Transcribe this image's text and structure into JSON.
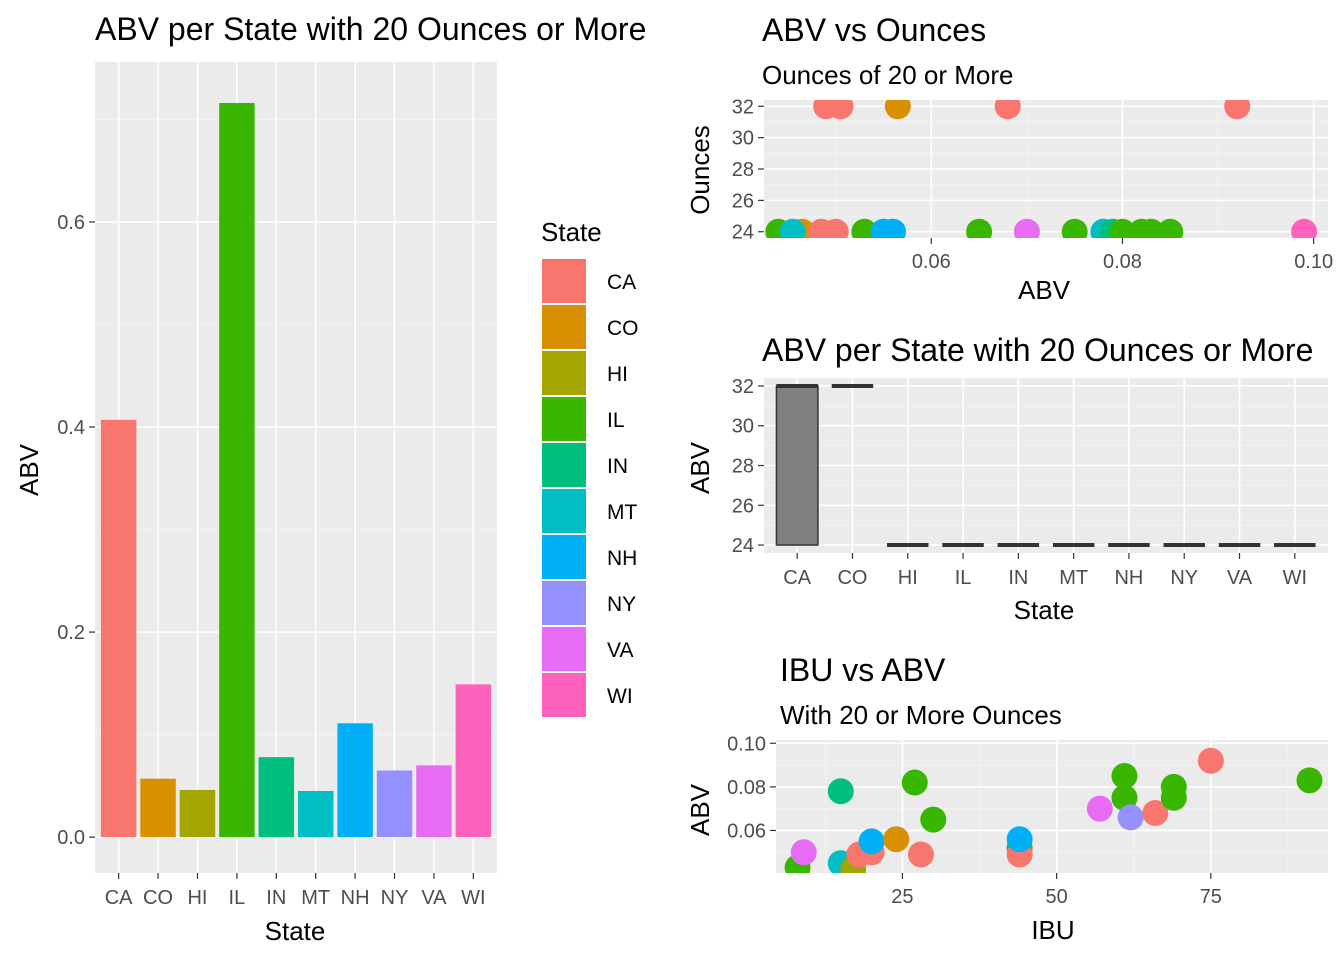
{
  "state_colors": {
    "CA": "#F8766D",
    "CO": "#D89000",
    "HI": "#A3A500",
    "IL": "#39B600",
    "IN": "#00BF7D",
    "MT": "#00BFC4",
    "NH": "#00B0F6",
    "NY": "#9590FF",
    "VA": "#E76BF3",
    "WI": "#FF62BC"
  },
  "panel_background": "#EBEBEB",
  "legend": {
    "title": "State",
    "entries": [
      "CA",
      "CO",
      "HI",
      "IL",
      "IN",
      "MT",
      "NH",
      "NY",
      "VA",
      "WI"
    ]
  },
  "chart_data": [
    {
      "type": "bar",
      "title": "ABV per State with 20 Ounces or More",
      "xlabel": "State",
      "ylabel": "ABV",
      "categories": [
        "CA",
        "CO",
        "HI",
        "IL",
        "IN",
        "MT",
        "NH",
        "NY",
        "VA",
        "WI"
      ],
      "values": [
        0.407,
        0.057,
        0.046,
        0.716,
        0.078,
        0.045,
        0.111,
        0.065,
        0.07,
        0.149
      ],
      "ylim": [
        -0.035,
        0.756
      ],
      "yticks": [
        "0.0",
        "0.2",
        "0.4",
        "0.6"
      ],
      "ytick_values": [
        0,
        0.2,
        0.4,
        0.6
      ],
      "fill_by": "State",
      "legend_position": "right",
      "grid": true
    },
    {
      "type": "scatter",
      "title": "ABV vs Ounces",
      "subtitle": "Ounces of 20 or More",
      "xlabel": "ABV",
      "ylabel": "Ounces",
      "xlim": [
        0.0425,
        0.1015
      ],
      "ylim": [
        23.6,
        32.4
      ],
      "xticks": [
        "0.06",
        "0.08",
        "0.10"
      ],
      "xtick_values": [
        0.06,
        0.08,
        0.1
      ],
      "yticks": [
        "24",
        "26",
        "28",
        "30",
        "32"
      ],
      "ytick_values": [
        24,
        26,
        28,
        30,
        32
      ],
      "color_by": "State",
      "grid": true,
      "points": [
        {
          "x": 0.049,
          "y": 32,
          "state": "CA"
        },
        {
          "x": 0.0505,
          "y": 32,
          "state": "CA"
        },
        {
          "x": 0.068,
          "y": 32,
          "state": "CA"
        },
        {
          "x": 0.092,
          "y": 32,
          "state": "CA"
        },
        {
          "x": 0.0565,
          "y": 32,
          "state": "CO"
        },
        {
          "x": 0.044,
          "y": 24,
          "state": "IL"
        },
        {
          "x": 0.0465,
          "y": 24,
          "state": "CO"
        },
        {
          "x": 0.0455,
          "y": 24,
          "state": "MT"
        },
        {
          "x": 0.0485,
          "y": 24,
          "state": "CA"
        },
        {
          "x": 0.05,
          "y": 24,
          "state": "CA"
        },
        {
          "x": 0.053,
          "y": 24,
          "state": "IL"
        },
        {
          "x": 0.055,
          "y": 24,
          "state": "NH"
        },
        {
          "x": 0.056,
          "y": 24,
          "state": "NH"
        },
        {
          "x": 0.065,
          "y": 24,
          "state": "IL"
        },
        {
          "x": 0.07,
          "y": 24,
          "state": "VA"
        },
        {
          "x": 0.075,
          "y": 24,
          "state": "IL"
        },
        {
          "x": 0.078,
          "y": 24,
          "state": "MT"
        },
        {
          "x": 0.079,
          "y": 24,
          "state": "IN"
        },
        {
          "x": 0.08,
          "y": 24,
          "state": "IL"
        },
        {
          "x": 0.082,
          "y": 24,
          "state": "IL"
        },
        {
          "x": 0.083,
          "y": 24,
          "state": "IL"
        },
        {
          "x": 0.085,
          "y": 24,
          "state": "IL"
        },
        {
          "x": 0.099,
          "y": 24,
          "state": "WI"
        }
      ]
    },
    {
      "type": "boxplot",
      "title": "ABV per State with 20 Ounces or More",
      "xlabel": "State",
      "ylabel": "ABV",
      "categories": [
        "CA",
        "CO",
        "HI",
        "IL",
        "IN",
        "MT",
        "NH",
        "NY",
        "VA",
        "WI"
      ],
      "ylim": [
        23.6,
        32.4
      ],
      "yticks": [
        "24",
        "26",
        "28",
        "30",
        "32"
      ],
      "ytick_values": [
        24,
        26,
        28,
        30,
        32
      ],
      "grid": true,
      "boxes": [
        {
          "category": "CA",
          "lower": 24,
          "median": 32,
          "upper": 32
        },
        {
          "category": "CO",
          "lower": 32,
          "median": 32,
          "upper": 32
        },
        {
          "category": "HI",
          "lower": 24,
          "median": 24,
          "upper": 24
        },
        {
          "category": "IL",
          "lower": 24,
          "median": 24,
          "upper": 24
        },
        {
          "category": "IN",
          "lower": 24,
          "median": 24,
          "upper": 24
        },
        {
          "category": "MT",
          "lower": 24,
          "median": 24,
          "upper": 24
        },
        {
          "category": "NH",
          "lower": 24,
          "median": 24,
          "upper": 24
        },
        {
          "category": "NY",
          "lower": 24,
          "median": 24,
          "upper": 24
        },
        {
          "category": "VA",
          "lower": 24,
          "median": 24,
          "upper": 24
        },
        {
          "category": "WI",
          "lower": 24,
          "median": 24,
          "upper": 24
        }
      ],
      "box_fill": "#7F7F7F"
    },
    {
      "type": "scatter",
      "title": "IBU vs ABV",
      "subtitle": "With 20 or More Ounces",
      "xlabel": "IBU",
      "ylabel": "ABV",
      "xlim": [
        4.5,
        94
      ],
      "ylim": [
        0.0405,
        0.1015
      ],
      "xticks": [
        "25",
        "50",
        "75"
      ],
      "xtick_values": [
        25,
        50,
        75
      ],
      "yticks": [
        "0.06",
        "0.08",
        "0.10"
      ],
      "ytick_values": [
        0.06,
        0.08,
        0.1
      ],
      "color_by": "State",
      "grid": true,
      "points": [
        {
          "x": 8,
          "y": 0.043,
          "state": "IL"
        },
        {
          "x": 9,
          "y": 0.05,
          "state": "VA"
        },
        {
          "x": 15,
          "y": 0.078,
          "state": "IN"
        },
        {
          "x": 15,
          "y": 0.045,
          "state": "MT"
        },
        {
          "x": 17,
          "y": 0.042,
          "state": "HI"
        },
        {
          "x": 18,
          "y": 0.049,
          "state": "CA"
        },
        {
          "x": 20,
          "y": 0.05,
          "state": "CA"
        },
        {
          "x": 20,
          "y": 0.055,
          "state": "NH"
        },
        {
          "x": 24,
          "y": 0.056,
          "state": "CO"
        },
        {
          "x": 27,
          "y": 0.082,
          "state": "IL"
        },
        {
          "x": 28,
          "y": 0.049,
          "state": "CA"
        },
        {
          "x": 30,
          "y": 0.065,
          "state": "IL"
        },
        {
          "x": 44,
          "y": 0.052,
          "state": "IL"
        },
        {
          "x": 44,
          "y": 0.049,
          "state": "CA"
        },
        {
          "x": 44,
          "y": 0.056,
          "state": "NH"
        },
        {
          "x": 57,
          "y": 0.07,
          "state": "VA"
        },
        {
          "x": 61,
          "y": 0.085,
          "state": "IL"
        },
        {
          "x": 61,
          "y": 0.075,
          "state": "IL"
        },
        {
          "x": 62,
          "y": 0.066,
          "state": "NY"
        },
        {
          "x": 66,
          "y": 0.068,
          "state": "CA"
        },
        {
          "x": 69,
          "y": 0.08,
          "state": "IL"
        },
        {
          "x": 69,
          "y": 0.075,
          "state": "IL"
        },
        {
          "x": 75,
          "y": 0.092,
          "state": "CA"
        },
        {
          "x": 91,
          "y": 0.083,
          "state": "IL"
        }
      ]
    }
  ]
}
